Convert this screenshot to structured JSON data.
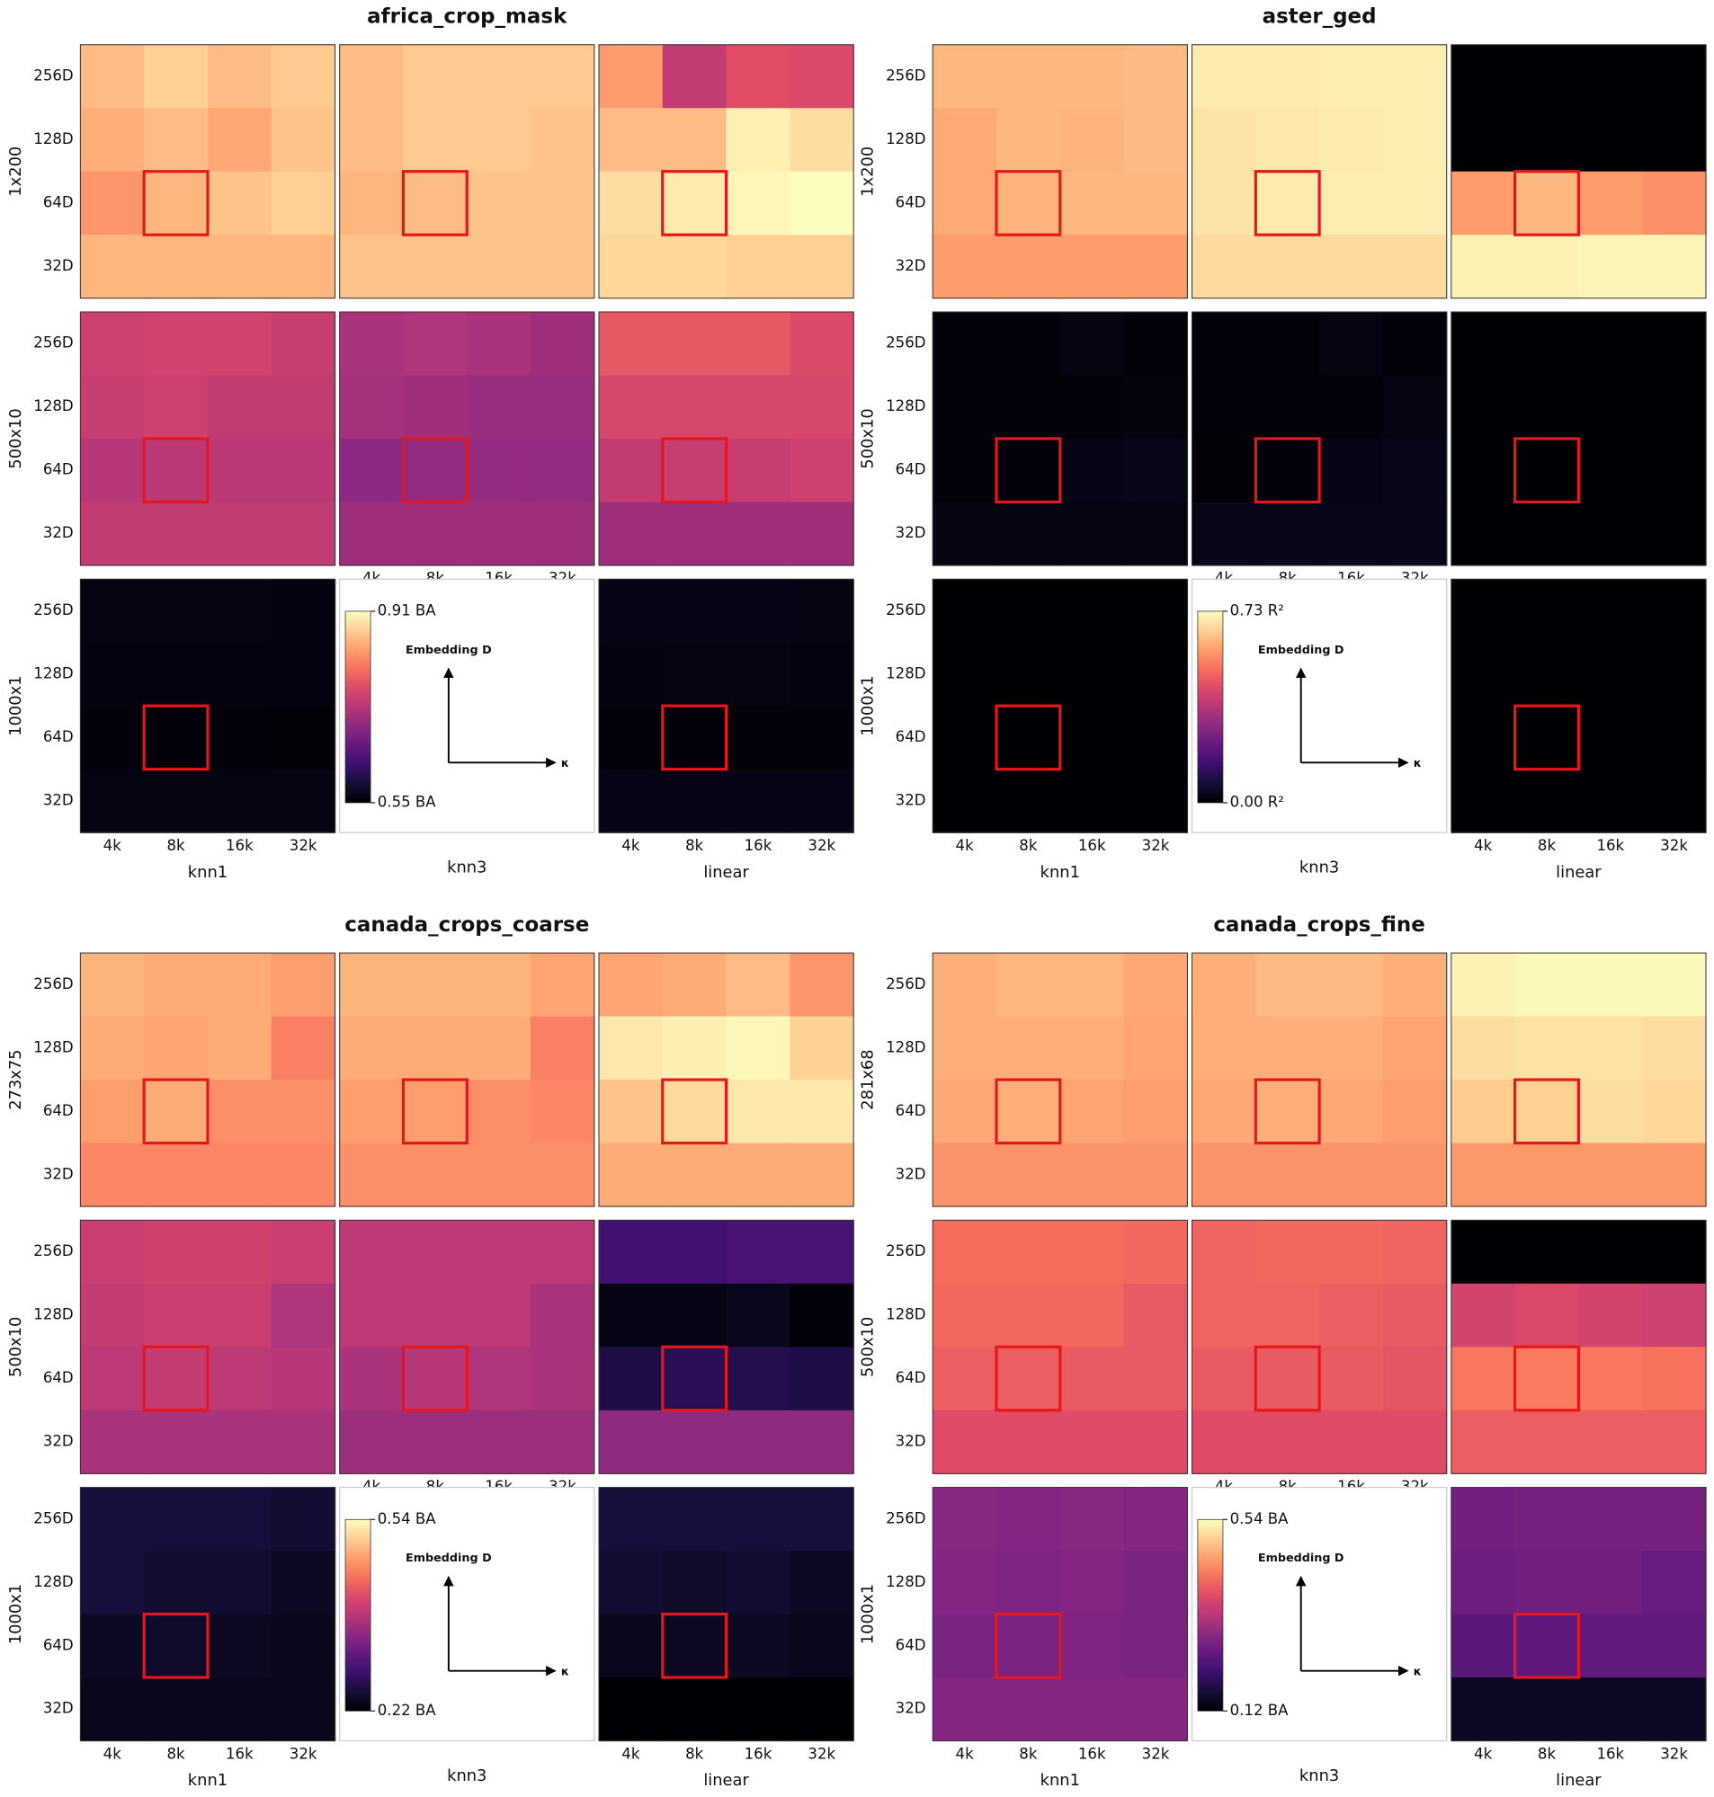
{
  "chart_data": [
    {
      "type": "heatmap-grid",
      "title": "africa_crop_mask",
      "colormap": "magma",
      "row_labels": [
        "1x200",
        "500x10",
        "1000x1"
      ],
      "column_labels": [
        "knn1",
        "knn3",
        "linear"
      ],
      "x_categories": [
        "4k",
        "8k",
        "16k",
        "32k"
      ],
      "y_categories": [
        "256D",
        "128D",
        "64D",
        "32D"
      ],
      "clim": [
        0.55,
        0.91
      ],
      "colorbar_ticks": [
        {
          "value": 0.55,
          "label": "0.55 BA"
        },
        {
          "value": 0.91,
          "label": "0.91 BA"
        }
      ],
      "inset_labels": {
        "y_arrow": "Embedding D",
        "x_arrow": "κ"
      },
      "values": [
        [
          [
            [
              0.86,
              0.875,
              0.86,
              0.87
            ],
            [
              0.85,
              0.86,
              0.845,
              0.865
            ],
            [
              0.83,
              0.855,
              0.865,
              0.875
            ],
            [
              0.855,
              0.855,
              0.855,
              0.855
            ]
          ],
          [
            [
              0.86,
              0.87,
              0.87,
              0.87
            ],
            [
              0.86,
              0.87,
              0.87,
              0.865
            ],
            [
              0.855,
              0.86,
              0.865,
              0.865
            ],
            [
              0.865,
              0.865,
              0.865,
              0.865
            ]
          ],
          [
            [
              0.835,
              0.74,
              0.77,
              0.765
            ],
            [
              0.86,
              0.86,
              0.9,
              0.885
            ],
            [
              0.885,
              0.895,
              0.905,
              0.91
            ],
            [
              0.88,
              0.88,
              0.875,
              0.875
            ]
          ]
        ],
        [
          [
            [
              0.75,
              0.755,
              0.755,
              0.745
            ],
            [
              0.745,
              0.75,
              0.74,
              0.74
            ],
            [
              0.73,
              0.735,
              0.735,
              0.735
            ],
            [
              0.74,
              0.74,
              0.74,
              0.74
            ]
          ],
          [
            [
              0.72,
              0.725,
              0.72,
              0.71
            ],
            [
              0.715,
              0.71,
              0.705,
              0.705
            ],
            [
              0.695,
              0.7,
              0.7,
              0.7
            ],
            [
              0.71,
              0.71,
              0.71,
              0.71
            ]
          ],
          [
            [
              0.78,
              0.78,
              0.78,
              0.765
            ],
            [
              0.76,
              0.76,
              0.76,
              0.76
            ],
            [
              0.74,
              0.745,
              0.745,
              0.75
            ],
            [
              0.71,
              0.71,
              0.71,
              0.71
            ]
          ]
        ],
        [
          [
            [
              0.56,
              0.56,
              0.56,
              0.558
            ],
            [
              0.558,
              0.558,
              0.558,
              0.558
            ],
            [
              0.555,
              0.555,
              0.555,
              0.553
            ],
            [
              0.56,
              0.56,
              0.56,
              0.56
            ]
          ],
          null,
          [
            [
              0.562,
              0.562,
              0.562,
              0.56
            ],
            [
              0.558,
              0.56,
              0.56,
              0.558
            ],
            [
              0.556,
              0.556,
              0.555,
              0.555
            ],
            [
              0.562,
              0.562,
              0.562,
              0.562
            ]
          ]
        ]
      ]
    },
    {
      "type": "heatmap-grid",
      "title": "aster_ged",
      "colormap": "magma",
      "row_labels": [
        "1x200",
        "500x10",
        "1000x1"
      ],
      "column_labels": [
        "knn1",
        "knn3",
        "linear"
      ],
      "x_categories": [
        "4k",
        "8k",
        "16k",
        "32k"
      ],
      "y_categories": [
        "256D",
        "128D",
        "64D",
        "32D"
      ],
      "clim": [
        0,
        0.73
      ],
      "colorbar_ticks": [
        {
          "value": 0,
          "label": "0.00 R²"
        },
        {
          "value": 0.73,
          "label": "0.73 R²"
        }
      ],
      "inset_labels": {
        "y_arrow": "Embedding D",
        "x_arrow": "κ"
      },
      "values": [
        [
          [
            [
              0.62,
              0.62,
              0.62,
              0.625
            ],
            [
              0.6,
              0.62,
              0.615,
              0.625
            ],
            [
              0.6,
              0.615,
              0.62,
              0.62
            ],
            [
              0.58,
              0.58,
              0.58,
              0.58
            ]
          ],
          [
            [
              0.7,
              0.7,
              0.705,
              0.705
            ],
            [
              0.69,
              0.695,
              0.7,
              0.705
            ],
            [
              0.69,
              0.7,
              0.705,
              0.705
            ],
            [
              0.675,
              0.675,
              0.675,
              0.675
            ]
          ],
          [
            [
              0,
              0,
              0,
              0
            ],
            [
              0,
              0,
              0,
              0
            ],
            [
              0.58,
              0.62,
              0.58,
              0.56
            ],
            [
              0.71,
              0.71,
              0.715,
              0.715
            ]
          ]
        ],
        [
          [
            [
              0.01,
              0.01,
              0.02,
              0.01
            ],
            [
              0.01,
              0.01,
              0.01,
              0.015
            ],
            [
              0.01,
              0.01,
              0.025,
              0.03
            ],
            [
              0.02,
              0.02,
              0.02,
              0.02
            ]
          ],
          [
            [
              0.01,
              0.01,
              0.02,
              0.01
            ],
            [
              0.01,
              0.01,
              0.01,
              0.02
            ],
            [
              0.005,
              0.01,
              0.025,
              0.03
            ],
            [
              0.03,
              0.03,
              0.03,
              0.03
            ]
          ],
          [
            [
              0,
              0,
              0,
              0
            ],
            [
              0,
              0,
              0,
              0
            ],
            [
              0,
              0,
              0,
              0
            ],
            [
              0,
              0,
              0,
              0
            ]
          ]
        ],
        [
          [
            [
              0,
              0,
              0,
              0
            ],
            [
              0,
              0,
              0,
              0
            ],
            [
              0,
              0,
              0,
              0
            ],
            [
              0,
              0,
              0,
              0
            ]
          ],
          null,
          [
            [
              0,
              0,
              0,
              0
            ],
            [
              0,
              0,
              0,
              0
            ],
            [
              0,
              0,
              0,
              0
            ],
            [
              0,
              0,
              0,
              0
            ]
          ]
        ]
      ]
    },
    {
      "type": "heatmap-grid",
      "title": "canada_crops_coarse",
      "colormap": "magma",
      "row_labels": [
        "273x75",
        "500x10",
        "1000x1"
      ],
      "column_labels": [
        "knn1",
        "knn3",
        "linear"
      ],
      "x_categories": [
        "4k",
        "8k",
        "16k",
        "32k"
      ],
      "y_categories": [
        "256D",
        "128D",
        "64D",
        "32D"
      ],
      "clim": [
        0.22,
        0.54
      ],
      "colorbar_ticks": [
        {
          "value": 0.22,
          "label": "0.22 BA"
        },
        {
          "value": 0.54,
          "label": "0.54 BA"
        }
      ],
      "inset_labels": {
        "y_arrow": "Embedding D",
        "x_arrow": "κ"
      },
      "values": [
        [
          [
            [
              0.49,
              0.485,
              0.485,
              0.475
            ],
            [
              0.485,
              0.48,
              0.485,
              0.455
            ],
            [
              0.475,
              0.485,
              0.465,
              0.465
            ],
            [
              0.46,
              0.46,
              0.46,
              0.46
            ]
          ],
          [
            [
              0.49,
              0.49,
              0.49,
              0.48
            ],
            [
              0.485,
              0.485,
              0.485,
              0.455
            ],
            [
              0.475,
              0.475,
              0.465,
              0.46
            ],
            [
              0.465,
              0.465,
              0.465,
              0.465
            ]
          ],
          [
            [
              0.48,
              0.485,
              0.495,
              0.47
            ],
            [
              0.525,
              0.53,
              0.535,
              0.51
            ],
            [
              0.5,
              0.515,
              0.525,
              0.525
            ],
            [
              0.485,
              0.485,
              0.485,
              0.485
            ]
          ]
        ],
        [
          [
            [
              0.395,
              0.4,
              0.4,
              0.395
            ],
            [
              0.39,
              0.395,
              0.395,
              0.375
            ],
            [
              0.385,
              0.39,
              0.385,
              0.38
            ],
            [
              0.37,
              0.37,
              0.37,
              0.37
            ]
          ],
          [
            [
              0.385,
              0.385,
              0.385,
              0.385
            ],
            [
              0.385,
              0.385,
              0.385,
              0.37
            ],
            [
              0.37,
              0.38,
              0.375,
              0.37
            ],
            [
              0.36,
              0.36,
              0.36,
              0.36
            ]
          ],
          [
            [
              0.29,
              0.29,
              0.295,
              0.295
            ],
            [
              0.23,
              0.23,
              0.235,
              0.225
            ],
            [
              0.26,
              0.27,
              0.265,
              0.26
            ],
            [
              0.35,
              0.35,
              0.35,
              0.35
            ]
          ]
        ],
        [
          [
            [
              0.255,
              0.255,
              0.255,
              0.25
            ],
            [
              0.255,
              0.25,
              0.25,
              0.24
            ],
            [
              0.24,
              0.245,
              0.24,
              0.235
            ],
            [
              0.235,
              0.235,
              0.235,
              0.235
            ]
          ],
          null,
          [
            [
              0.255,
              0.255,
              0.255,
              0.255
            ],
            [
              0.25,
              0.245,
              0.25,
              0.24
            ],
            [
              0.235,
              0.24,
              0.24,
              0.235
            ],
            [
              0.22,
              0.22,
              0.22,
              0.22
            ]
          ]
        ]
      ]
    },
    {
      "type": "heatmap-grid",
      "title": "canada_crops_fine",
      "colormap": "magma",
      "row_labels": [
        "281x68",
        "500x10",
        "1000x1"
      ],
      "column_labels": [
        "knn1",
        "knn3",
        "linear"
      ],
      "x_categories": [
        "4k",
        "8k",
        "16k",
        "32k"
      ],
      "y_categories": [
        "256D",
        "128D",
        "64D",
        "32D"
      ],
      "clim": [
        0.12,
        0.54
      ],
      "colorbar_ticks": [
        {
          "value": 0.12,
          "label": "0.12 BA"
        },
        {
          "value": 0.54,
          "label": "0.54 BA"
        }
      ],
      "inset_labels": {
        "y_arrow": "Embedding D",
        "x_arrow": "κ"
      },
      "values": [
        [
          [
            [
              0.47,
              0.475,
              0.475,
              0.465
            ],
            [
              0.47,
              0.47,
              0.47,
              0.46
            ],
            [
              0.465,
              0.47,
              0.46,
              0.455
            ],
            [
              0.445,
              0.445,
              0.445,
              0.445
            ]
          ],
          [
            [
              0.47,
              0.48,
              0.48,
              0.47
            ],
            [
              0.47,
              0.47,
              0.47,
              0.46
            ],
            [
              0.465,
              0.47,
              0.465,
              0.455
            ],
            [
              0.445,
              0.445,
              0.445,
              0.445
            ]
          ],
          [
            [
              0.53,
              0.535,
              0.535,
              0.535
            ],
            [
              0.51,
              0.515,
              0.515,
              0.51
            ],
            [
              0.495,
              0.5,
              0.51,
              0.505
            ],
            [
              0.45,
              0.45,
              0.45,
              0.45
            ]
          ]
        ],
        [
          [
            [
              0.41,
              0.41,
              0.41,
              0.405
            ],
            [
              0.405,
              0.405,
              0.405,
              0.39
            ],
            [
              0.395,
              0.395,
              0.39,
              0.39
            ],
            [
              0.375,
              0.375,
              0.375,
              0.375
            ]
          ],
          [
            [
              0.4,
              0.405,
              0.405,
              0.4
            ],
            [
              0.4,
              0.4,
              0.395,
              0.39
            ],
            [
              0.39,
              0.39,
              0.39,
              0.385
            ],
            [
              0.375,
              0.375,
              0.375,
              0.375
            ]
          ],
          [
            [
              0.12,
              0.12,
              0.12,
              0.12
            ],
            [
              0.36,
              0.37,
              0.36,
              0.355
            ],
            [
              0.42,
              0.425,
              0.42,
              0.415
            ],
            [
              0.395,
              0.395,
              0.395,
              0.395
            ]
          ]
        ],
        [
          [
            [
              0.285,
              0.28,
              0.285,
              0.28
            ],
            [
              0.28,
              0.275,
              0.28,
              0.27
            ],
            [
              0.27,
              0.27,
              0.275,
              0.27
            ],
            [
              0.28,
              0.28,
              0.28,
              0.28
            ]
          ],
          null,
          [
            [
              0.26,
              0.265,
              0.265,
              0.265
            ],
            [
              0.255,
              0.26,
              0.26,
              0.25
            ],
            [
              0.235,
              0.24,
              0.245,
              0.245
            ],
            [
              0.145,
              0.145,
              0.145,
              0.145
            ]
          ]
        ]
      ]
    }
  ]
}
